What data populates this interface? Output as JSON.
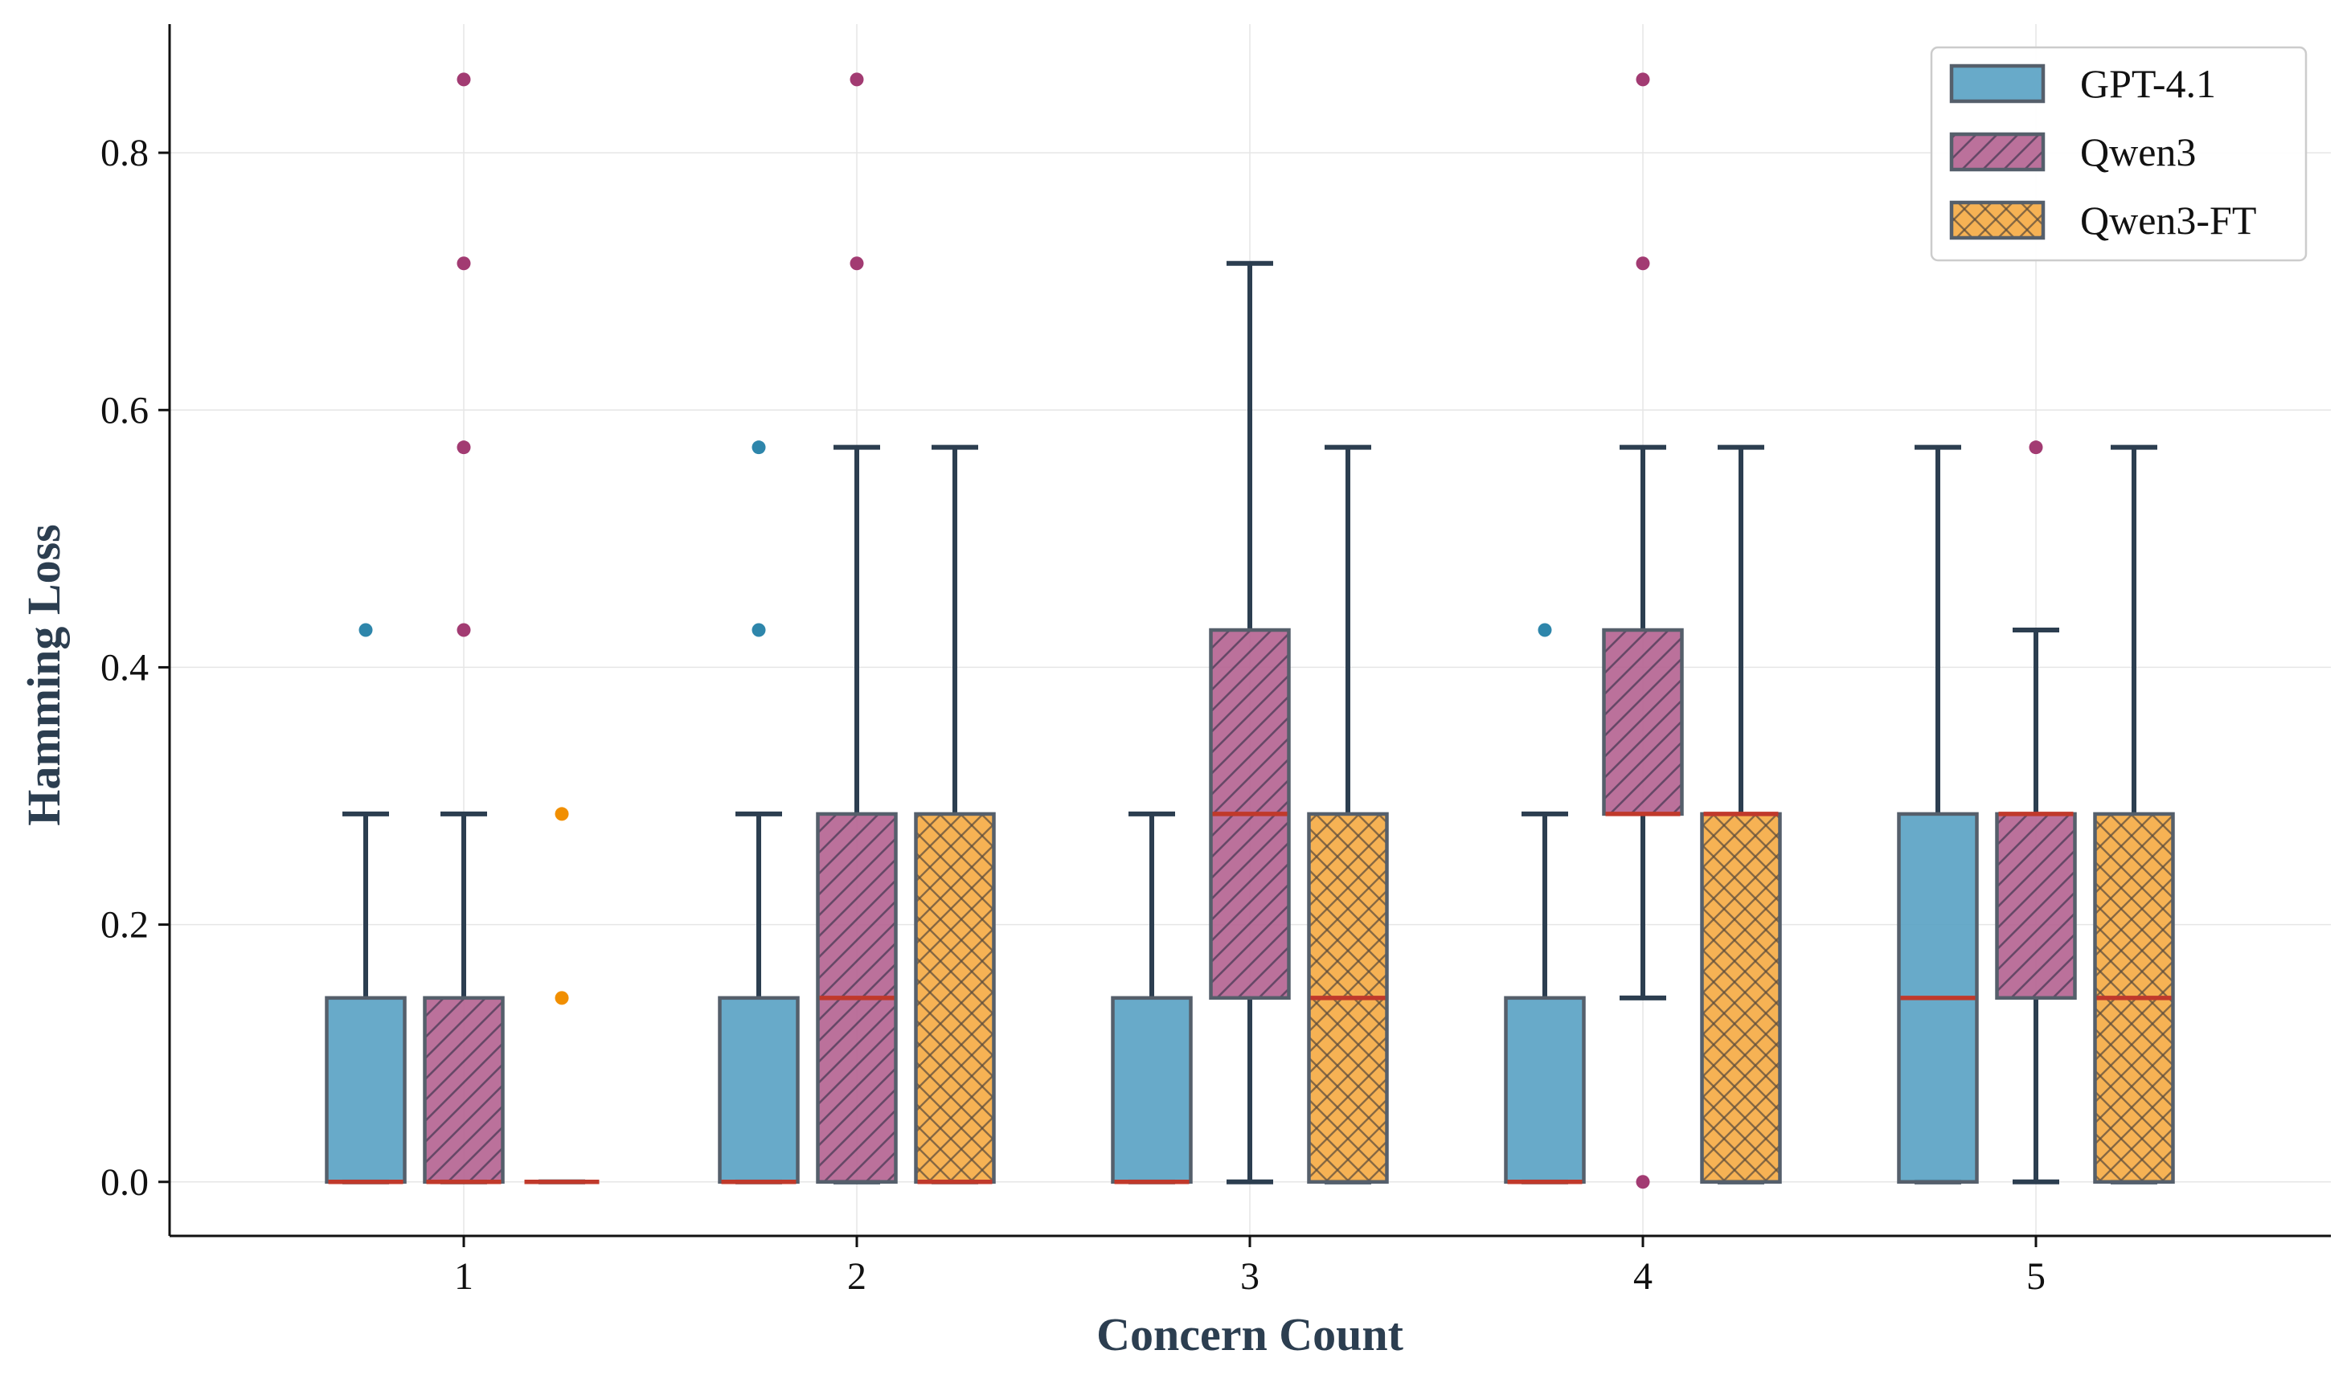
{
  "chart_data": {
    "type": "boxplot",
    "title": "",
    "xlabel": "Concern Count",
    "ylabel": "Hamming Loss",
    "categories": [
      "1",
      "2",
      "3",
      "4",
      "5"
    ],
    "ylim": [
      -0.042,
      0.9
    ],
    "yticks": [
      0.0,
      0.2,
      0.4,
      0.6,
      0.8
    ],
    "ytick_labels": [
      "0.0",
      "0.2",
      "0.4",
      "0.6",
      "0.8"
    ],
    "grid": true,
    "legend_position": "top-right",
    "colors": {
      "median": "#c0392b",
      "whisker": "#2c3e50",
      "box_edge": "#555f6b",
      "grid": "#e6e6e6",
      "axis": "#111111"
    },
    "series": [
      {
        "name": "GPT-4.1",
        "color": "#5ba3c4",
        "flier_color": "#2e86ab",
        "hatch": "none",
        "boxes": [
          {
            "q1": 0.0,
            "median": 0.0,
            "q3": 0.143,
            "whislo": 0.0,
            "whishi": 0.286,
            "fliers": [
              0.429
            ]
          },
          {
            "q1": 0.0,
            "median": 0.0,
            "q3": 0.143,
            "whislo": 0.0,
            "whishi": 0.286,
            "fliers": [
              0.429,
              0.571
            ]
          },
          {
            "q1": 0.0,
            "median": 0.0,
            "q3": 0.143,
            "whislo": 0.0,
            "whishi": 0.286,
            "fliers": []
          },
          {
            "q1": 0.0,
            "median": 0.0,
            "q3": 0.143,
            "whislo": 0.0,
            "whishi": 0.286,
            "fliers": [
              0.429
            ]
          },
          {
            "q1": 0.0,
            "median": 0.143,
            "q3": 0.286,
            "whislo": 0.0,
            "whishi": 0.571,
            "fliers": []
          }
        ]
      },
      {
        "name": "Qwen3",
        "color": "#b56592",
        "flier_color": "#a23b72",
        "hatch": "diagonal",
        "boxes": [
          {
            "q1": 0.0,
            "median": 0.0,
            "q3": 0.143,
            "whislo": 0.0,
            "whishi": 0.286,
            "fliers": [
              0.429,
              0.571,
              0.714,
              0.857
            ]
          },
          {
            "q1": 0.0,
            "median": 0.143,
            "q3": 0.286,
            "whislo": 0.0,
            "whishi": 0.571,
            "fliers": [
              0.714,
              0.857
            ]
          },
          {
            "q1": 0.143,
            "median": 0.286,
            "q3": 0.429,
            "whislo": 0.0,
            "whishi": 0.714,
            "fliers": []
          },
          {
            "q1": 0.286,
            "median": 0.286,
            "q3": 0.429,
            "whislo": 0.143,
            "whishi": 0.571,
            "fliers": [
              0.0,
              0.714,
              0.857
            ]
          },
          {
            "q1": 0.143,
            "median": 0.286,
            "q3": 0.286,
            "whislo": 0.0,
            "whishi": 0.429,
            "fliers": [
              0.571
            ]
          }
        ]
      },
      {
        "name": "Qwen3-FT",
        "color": "#f5ab45",
        "flier_color": "#f18f01",
        "hatch": "crosshatch",
        "boxes": [
          {
            "q1": 0.0,
            "median": 0.0,
            "q3": 0.0,
            "whislo": 0.0,
            "whishi": 0.0,
            "fliers": [
              0.143,
              0.286
            ]
          },
          {
            "q1": 0.0,
            "median": 0.0,
            "q3": 0.286,
            "whislo": 0.0,
            "whishi": 0.571,
            "fliers": []
          },
          {
            "q1": 0.0,
            "median": 0.143,
            "q3": 0.286,
            "whislo": 0.0,
            "whishi": 0.571,
            "fliers": []
          },
          {
            "q1": 0.0,
            "median": 0.286,
            "q3": 0.286,
            "whislo": 0.0,
            "whishi": 0.571,
            "fliers": []
          },
          {
            "q1": 0.0,
            "median": 0.143,
            "q3": 0.286,
            "whislo": 0.0,
            "whishi": 0.571,
            "fliers": []
          }
        ]
      }
    ]
  }
}
